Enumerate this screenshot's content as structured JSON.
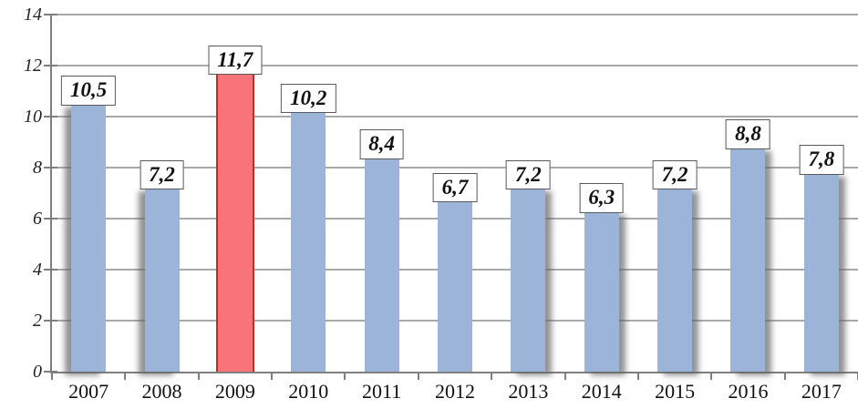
{
  "chart_data": {
    "type": "bar",
    "categories": [
      "2007",
      "2008",
      "2009",
      "2010",
      "2011",
      "2012",
      "2013",
      "2014",
      "2015",
      "2016",
      "2017"
    ],
    "values": [
      10.5,
      7.2,
      11.7,
      10.2,
      8.4,
      6.7,
      7.2,
      6.3,
      7.2,
      8.8,
      7.8
    ],
    "value_labels": [
      "10,5",
      "7,2",
      "11,7",
      "10,2",
      "8,4",
      "6,7",
      "7,2",
      "6,3",
      "7,2",
      "8,8",
      "7,8"
    ],
    "highlight_index": 2,
    "title": "",
    "xlabel": "",
    "ylabel": "",
    "ylim": [
      0,
      14
    ],
    "ytick_step": 2,
    "ytick_labels": [
      "0",
      "2",
      "4",
      "6",
      "8",
      "10",
      "12",
      "14"
    ],
    "grid": true,
    "legend": false,
    "colors": {
      "bar": "#9cb4d7",
      "highlight_bar": "#f87478",
      "highlight_border": "#c32a2a",
      "gridline": "#aaaaaa",
      "axis": "#7f7f7f",
      "text": "#111111",
      "label_box_border": "#595959",
      "label_box_bg": "#ffffff"
    }
  }
}
